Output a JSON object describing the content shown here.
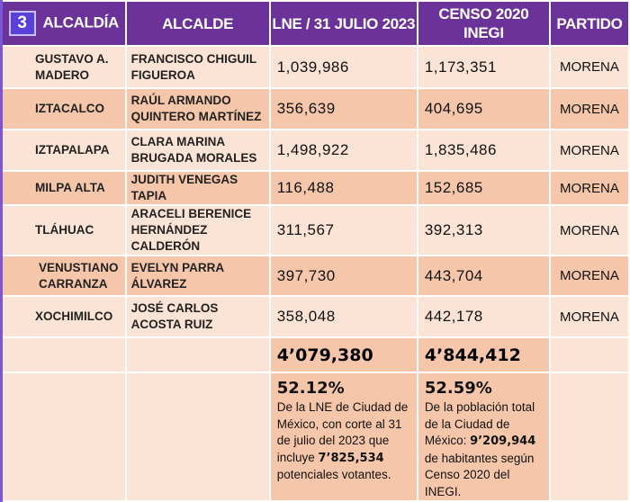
{
  "header": {
    "badge": "3",
    "alcaldia": "ALCALDÍA",
    "alcalde": "ALCALDE",
    "lne": "LNE / 31 JULIO 2023",
    "censo": "CENSO 2020 INEGI",
    "partido": "PARTIDO"
  },
  "rows": [
    {
      "alcaldia": "GUSTAVO A. MADERO",
      "alcalde": "FRANCISCO CHIGUIL FIGUEROA",
      "lne": "1,039,986",
      "censo": "1,173,351",
      "partido": "MORENA"
    },
    {
      "alcaldia": "IZTACALCO",
      "alcalde": "RAÚL ARMANDO QUINTERO MARTÍNEZ",
      "lne": "356,639",
      "censo": "404,695",
      "partido": "MORENA"
    },
    {
      "alcaldia": "IZTAPALAPA",
      "alcalde": "CLARA MARINA BRUGADA MORALES",
      "lne": "1,498,922",
      "censo": "1,835,486",
      "partido": "MORENA"
    },
    {
      "alcaldia": "MILPA ALTA",
      "alcalde": "JUDITH VENEGAS TAPIA",
      "lne": "116,488",
      "censo": "152,685",
      "partido": "MORENA"
    },
    {
      "alcaldia": "TLÁHUAC",
      "alcalde": "ARACELI BERENICE HERNÁNDEZ CALDERÓN",
      "lne": "311,567",
      "censo": "392,313",
      "partido": "MORENA"
    },
    {
      "alcaldia": "VENUSTIANO CARRANZA",
      "alcalde": "EVELYN PARRA ÁLVAREZ",
      "lne": "397,730",
      "censo": "443,704",
      "partido": "MORENA"
    },
    {
      "alcaldia": "XOCHIMILCO",
      "alcalde": "JOSÉ CARLOS ACOSTA RUIZ",
      "lne": "358,048",
      "censo": "442,178",
      "partido": "MORENA"
    }
  ],
  "totals": {
    "lne": "4’079,380",
    "censo": "4’844,412"
  },
  "summary": {
    "lne": {
      "pct": "52.12%",
      "text_a": "De la LNE de Ciudad de México, con corte al 31 de julio del 2023 que incluye ",
      "bold": "7’825,534",
      "text_b": " potenciales votantes."
    },
    "censo": {
      "pct": "52.59%",
      "text_a": "De la población total de la Ciudad de México: ",
      "bold": "9’209,944",
      "text_b": " de habitantes según Censo 2020 del INEGI."
    }
  }
}
